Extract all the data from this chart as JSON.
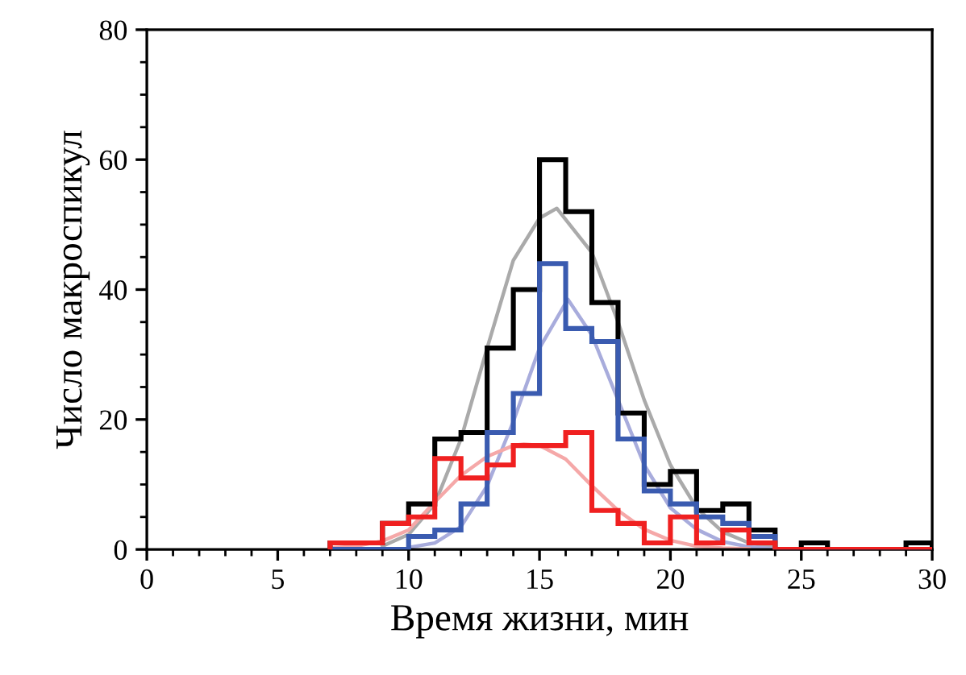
{
  "chart_data": {
    "type": "histogram",
    "xlabel": "Время жизни, мин",
    "ylabel": "Число макроспикул",
    "bins": [
      7,
      8,
      9,
      10,
      11,
      12,
      13,
      14,
      15,
      16,
      17,
      18,
      19,
      20,
      21,
      22,
      23,
      24,
      25,
      26,
      27,
      28,
      29,
      30
    ],
    "series": [
      {
        "color": "#000000",
        "values": [
          1,
          1,
          4,
          7,
          17,
          18,
          31,
          40,
          60,
          52,
          38,
          21,
          10,
          12,
          6,
          7,
          3,
          0,
          1,
          0,
          0,
          0,
          1
        ]
      },
      {
        "color": "#3a5bb0",
        "values": [
          0,
          0,
          0,
          2,
          3,
          7,
          18,
          24,
          44,
          34,
          32,
          17,
          9,
          7,
          5,
          4,
          2,
          0,
          0,
          0,
          0,
          0,
          0
        ]
      },
      {
        "color": "#f02020",
        "values": [
          1,
          1,
          4,
          5,
          14,
          11,
          13,
          16,
          16,
          18,
          6,
          4,
          1,
          5,
          1,
          3,
          1,
          0,
          0,
          0,
          0,
          0,
          0
        ]
      },
      {
        "type": "line",
        "color": "#aaaaaa",
        "x": [
          9,
          10,
          11,
          12,
          13,
          14,
          15,
          15.66,
          17,
          18,
          19,
          20,
          21,
          22,
          23,
          24
        ],
        "values": [
          0.5,
          2.3,
          7,
          17,
          31,
          44.5,
          51,
          52.5,
          45.7,
          35,
          23,
          13,
          6.4,
          2.7,
          1,
          0.3
        ]
      },
      {
        "type": "line",
        "color": "#a8acdc",
        "x": [
          10,
          11,
          12,
          13,
          14,
          15,
          16.08,
          17,
          18,
          19,
          20,
          21,
          22,
          23,
          24
        ],
        "values": [
          0.3,
          1,
          3.5,
          9.8,
          19.7,
          31,
          38.5,
          33,
          23,
          13,
          6.4,
          3.1,
          1.2,
          0.4,
          0.1
        ]
      },
      {
        "type": "line",
        "color": "#f5a8a8",
        "x": [
          7,
          8,
          9,
          10,
          11,
          12,
          13,
          14,
          14.4,
          15,
          16,
          17,
          18,
          19,
          20,
          21,
          22,
          23
        ],
        "values": [
          0.2,
          0.5,
          1.3,
          3,
          7.3,
          11.4,
          14.3,
          16,
          16.2,
          16,
          13.9,
          9.8,
          6,
          3.1,
          1.4,
          0.5,
          0.2,
          0.1
        ]
      }
    ],
    "xlim": [
      0,
      30
    ],
    "xticks": [
      0,
      5,
      10,
      15,
      20,
      25,
      30
    ],
    "ylim": [
      0,
      80
    ],
    "yticks": [
      0,
      20,
      40,
      60,
      80
    ],
    "grid": false,
    "legend": false
  }
}
